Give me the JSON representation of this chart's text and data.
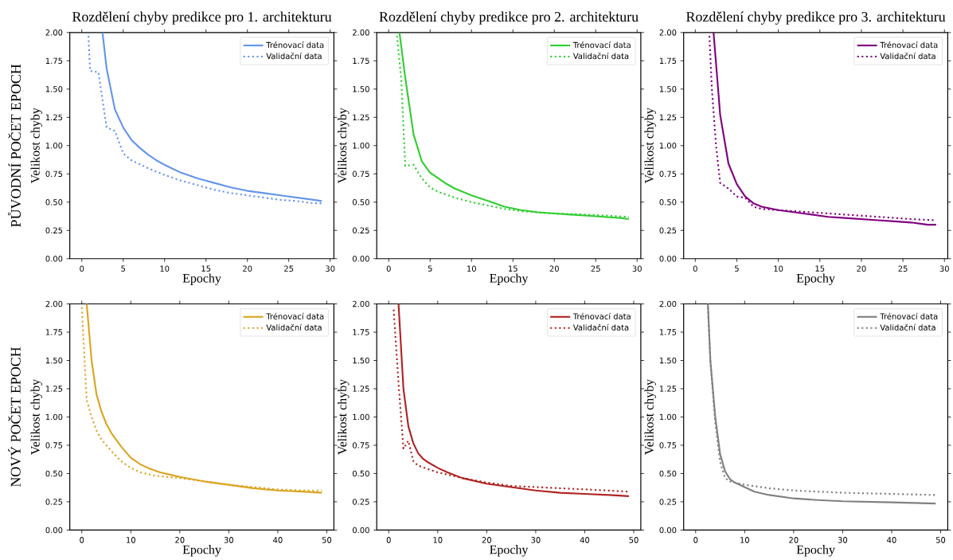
{
  "chart_data": [
    {
      "type": "line",
      "title": "Rozdělení chyby predikce pro 1. architekturu",
      "xlabel": "Epochy",
      "ylabel": "Velikost chyby",
      "annotations": [
        "PŮVODNÍ POČET EPOCH"
      ],
      "legend": "top right",
      "xlim": [
        -1.45,
        30.45
      ],
      "ylim": [
        0,
        2
      ],
      "xticks": [
        0,
        5,
        10,
        15,
        20,
        25,
        30
      ],
      "yticks": [
        {
          "value": 0,
          "label": "0.00"
        },
        {
          "value": 0.25,
          "label": "0.25"
        },
        {
          "value": 0.5,
          "label": "0.50"
        },
        {
          "value": 0.75,
          "label": "0.75"
        },
        {
          "value": 1,
          "label": "1.00"
        },
        {
          "value": 1.25,
          "label": "1.25"
        },
        {
          "value": 1.5,
          "label": "1.50"
        },
        {
          "value": 1.75,
          "label": "1.75"
        },
        {
          "value": 2,
          "label": "2.00"
        }
      ],
      "series": [
        {
          "name": "Trénovací data",
          "color": "#6495ed",
          "line_style": "solid",
          "x": [
            2.5,
            3,
            4,
            5,
            6,
            7,
            8,
            9,
            10,
            12,
            14,
            16,
            18,
            20,
            22,
            24,
            26,
            28,
            29
          ],
          "values": [
            2.0,
            1.68,
            1.32,
            1.16,
            1.05,
            0.98,
            0.92,
            0.87,
            0.83,
            0.76,
            0.71,
            0.67,
            0.63,
            0.6,
            0.58,
            0.56,
            0.54,
            0.52,
            0.51
          ]
        },
        {
          "name": "Validační data",
          "color": "#6495ed",
          "line_style": "dotted",
          "x": [
            0.8,
            1,
            2,
            3,
            4,
            5,
            6,
            8,
            10,
            12,
            14,
            16,
            18,
            20,
            22,
            24,
            26,
            28,
            29
          ],
          "values": [
            1.97,
            1.66,
            1.65,
            1.16,
            1.13,
            0.93,
            0.87,
            0.8,
            0.74,
            0.69,
            0.65,
            0.61,
            0.58,
            0.56,
            0.54,
            0.52,
            0.51,
            0.49,
            0.49
          ]
        }
      ]
    },
    {
      "type": "line",
      "title": "Rozdělení chyby predikce pro 2. architekturu",
      "xlabel": "Epochy",
      "ylabel": "Velikost chyby",
      "legend": "top right",
      "xlim": [
        -1.45,
        30.45
      ],
      "ylim": [
        0,
        2
      ],
      "xticks": [
        0,
        5,
        10,
        15,
        20,
        25,
        30
      ],
      "yticks": [
        {
          "value": 0,
          "label": "0.00"
        },
        {
          "value": 0.25,
          "label": "0.25"
        },
        {
          "value": 0.5,
          "label": "0.50"
        },
        {
          "value": 0.75,
          "label": "0.75"
        },
        {
          "value": 1,
          "label": "1.00"
        },
        {
          "value": 1.25,
          "label": "1.25"
        },
        {
          "value": 1.5,
          "label": "1.50"
        },
        {
          "value": 1.75,
          "label": "1.75"
        },
        {
          "value": 2,
          "label": "2.00"
        }
      ],
      "series": [
        {
          "name": "Trénovací data",
          "color": "#32cd32",
          "line_style": "solid",
          "x": [
            1.3,
            2,
            3,
            4,
            5,
            6,
            7,
            8,
            10,
            12,
            14,
            16,
            18,
            20,
            22,
            24,
            26,
            28,
            29
          ],
          "values": [
            2.0,
            1.6,
            1.1,
            0.86,
            0.76,
            0.71,
            0.66,
            0.62,
            0.56,
            0.51,
            0.46,
            0.43,
            0.41,
            0.4,
            0.39,
            0.38,
            0.37,
            0.36,
            0.35
          ]
        },
        {
          "name": "Validační data",
          "color": "#32cd32",
          "line_style": "dotted",
          "x": [
            1,
            1.5,
            2,
            3,
            4,
            5,
            6,
            8,
            10,
            12,
            14,
            16,
            18,
            20,
            24,
            29
          ],
          "values": [
            1.97,
            1.6,
            0.82,
            0.83,
            0.71,
            0.63,
            0.59,
            0.54,
            0.5,
            0.47,
            0.44,
            0.42,
            0.41,
            0.4,
            0.39,
            0.37
          ]
        }
      ]
    },
    {
      "type": "line",
      "title": "Rozdělení chyby predikce pro 3. architekturu",
      "xlabel": "Epochy",
      "ylabel": "Velikost chyby",
      "legend": "top right",
      "xlim": [
        -1.4,
        30.4
      ],
      "ylim": [
        0,
        2
      ],
      "xticks": [
        0,
        5,
        10,
        15,
        20,
        25,
        30
      ],
      "yticks": [
        {
          "value": 0,
          "label": "0.00"
        },
        {
          "value": 0.25,
          "label": "0.25"
        },
        {
          "value": 0.5,
          "label": "0.50"
        },
        {
          "value": 0.75,
          "label": "0.75"
        },
        {
          "value": 1,
          "label": "1.00"
        },
        {
          "value": 1.25,
          "label": "1.25"
        },
        {
          "value": 1.5,
          "label": "1.50"
        },
        {
          "value": 1.75,
          "label": "1.75"
        },
        {
          "value": 2,
          "label": "2.00"
        }
      ],
      "series": [
        {
          "name": "Trénovací data",
          "color": "#800080",
          "line_style": "solid",
          "x": [
            2.2,
            3,
            4,
            5,
            6,
            7,
            8,
            10,
            12,
            14,
            16,
            18,
            20,
            22,
            24,
            26,
            28,
            29
          ],
          "values": [
            2.0,
            1.27,
            0.84,
            0.66,
            0.55,
            0.49,
            0.46,
            0.43,
            0.41,
            0.39,
            0.37,
            0.36,
            0.35,
            0.34,
            0.33,
            0.32,
            0.3,
            0.3
          ]
        },
        {
          "name": "Validační data",
          "color": "#800080",
          "line_style": "dotted",
          "x": [
            1.7,
            2,
            2.5,
            3,
            4,
            5,
            6,
            7,
            8,
            10,
            14,
            18,
            22,
            26,
            29
          ],
          "values": [
            1.97,
            1.5,
            1.0,
            0.67,
            0.62,
            0.55,
            0.54,
            0.46,
            0.44,
            0.43,
            0.41,
            0.39,
            0.37,
            0.35,
            0.34
          ]
        }
      ]
    },
    {
      "type": "line",
      "xlabel": "Epochy",
      "ylabel": "Velikost chyby",
      "annotations": [
        "NOVÝ POČET EPOCH"
      ],
      "legend": "top right",
      "xlim": [
        -2.45,
        51.45
      ],
      "ylim": [
        0,
        2
      ],
      "xticks": [
        0,
        10,
        20,
        30,
        40,
        50
      ],
      "yticks": [
        {
          "value": 0,
          "label": "0.00"
        },
        {
          "value": 0.25,
          "label": "0.25"
        },
        {
          "value": 0.5,
          "label": "0.50"
        },
        {
          "value": 0.75,
          "label": "0.75"
        },
        {
          "value": 1,
          "label": "1.00"
        },
        {
          "value": 1.25,
          "label": "1.25"
        },
        {
          "value": 1.5,
          "label": "1.50"
        },
        {
          "value": 1.75,
          "label": "1.75"
        },
        {
          "value": 2,
          "label": "2.00"
        }
      ],
      "series": [
        {
          "name": "Trénovací data",
          "color": "#daa520",
          "line_style": "solid",
          "x": [
            1,
            2,
            3,
            4,
            5,
            6,
            8,
            10,
            12,
            14,
            16,
            18,
            20,
            25,
            30,
            35,
            40,
            45,
            49
          ],
          "values": [
            2.0,
            1.5,
            1.2,
            1.05,
            0.94,
            0.86,
            0.74,
            0.64,
            0.58,
            0.54,
            0.51,
            0.49,
            0.47,
            0.43,
            0.4,
            0.37,
            0.35,
            0.34,
            0.33
          ]
        },
        {
          "name": "Validační data",
          "color": "#daa520",
          "line_style": "dotted",
          "x": [
            0,
            1,
            2,
            3,
            4,
            6,
            8,
            10,
            12,
            15,
            20,
            25,
            30,
            35,
            40,
            45,
            49
          ],
          "values": [
            1.97,
            1.15,
            1.0,
            0.88,
            0.8,
            0.7,
            0.61,
            0.55,
            0.51,
            0.48,
            0.46,
            0.43,
            0.4,
            0.38,
            0.36,
            0.35,
            0.35
          ]
        }
      ]
    },
    {
      "type": "line",
      "xlabel": "Epochy",
      "ylabel": "Velikost chyby",
      "legend": "top right",
      "xlim": [
        -2.45,
        51.45
      ],
      "ylim": [
        0,
        2
      ],
      "xticks": [
        0,
        10,
        20,
        30,
        40,
        50
      ],
      "yticks": [
        {
          "value": 0,
          "label": "0.00"
        },
        {
          "value": 0.25,
          "label": "0.25"
        },
        {
          "value": 0.5,
          "label": "0.50"
        },
        {
          "value": 0.75,
          "label": "0.75"
        },
        {
          "value": 1,
          "label": "1.00"
        },
        {
          "value": 1.25,
          "label": "1.25"
        },
        {
          "value": 1.5,
          "label": "1.50"
        },
        {
          "value": 1.75,
          "label": "1.75"
        },
        {
          "value": 2,
          "label": "2.00"
        }
      ],
      "series": [
        {
          "name": "Trénovací data",
          "color": "#b22222",
          "line_style": "solid",
          "x": [
            2,
            3,
            4,
            5,
            6,
            7,
            8,
            10,
            12,
            15,
            20,
            25,
            30,
            35,
            40,
            45,
            49
          ],
          "values": [
            2.0,
            1.25,
            0.92,
            0.77,
            0.68,
            0.63,
            0.6,
            0.55,
            0.51,
            0.46,
            0.41,
            0.38,
            0.35,
            0.33,
            0.32,
            0.31,
            0.3
          ]
        },
        {
          "name": "Validační data",
          "color": "#b22222",
          "line_style": "dotted",
          "x": [
            1,
            2,
            3,
            4,
            5,
            6,
            8,
            10,
            15,
            20,
            25,
            30,
            40,
            49
          ],
          "values": [
            1.95,
            1.3,
            0.72,
            0.79,
            0.61,
            0.57,
            0.54,
            0.51,
            0.46,
            0.42,
            0.39,
            0.38,
            0.36,
            0.34
          ]
        }
      ]
    },
    {
      "type": "line",
      "xlabel": "Epochy",
      "ylabel": "Velikost chyby",
      "legend": "top right",
      "xlim": [
        -2.45,
        51.45
      ],
      "ylim": [
        0,
        2
      ],
      "xticks": [
        0,
        10,
        20,
        30,
        40,
        50
      ],
      "yticks": [
        {
          "value": 0,
          "label": "0.00"
        },
        {
          "value": 0.25,
          "label": "0.25"
        },
        {
          "value": 0.5,
          "label": "0.50"
        },
        {
          "value": 0.75,
          "label": "0.75"
        },
        {
          "value": 1,
          "label": "1.00"
        },
        {
          "value": 1.25,
          "label": "1.25"
        },
        {
          "value": 1.5,
          "label": "1.50"
        },
        {
          "value": 1.75,
          "label": "1.75"
        },
        {
          "value": 2,
          "label": "2.00"
        }
      ],
      "series": [
        {
          "name": "Trénovací data",
          "color": "#808080",
          "line_style": "solid",
          "x": [
            2.5,
            3,
            4,
            5,
            6,
            7,
            8,
            10,
            12,
            15,
            20,
            25,
            30,
            40,
            49
          ],
          "values": [
            2.0,
            1.5,
            1.0,
            0.67,
            0.52,
            0.45,
            0.42,
            0.38,
            0.34,
            0.31,
            0.28,
            0.265,
            0.255,
            0.245,
            0.235
          ]
        },
        {
          "name": "Validační data",
          "color": "#808080",
          "line_style": "dotted",
          "x": [
            2.5,
            3,
            4,
            5,
            6,
            7,
            8,
            10,
            15,
            20,
            30,
            40,
            49
          ],
          "values": [
            1.97,
            1.5,
            0.95,
            0.6,
            0.46,
            0.43,
            0.42,
            0.4,
            0.37,
            0.35,
            0.33,
            0.32,
            0.31
          ]
        }
      ]
    }
  ]
}
